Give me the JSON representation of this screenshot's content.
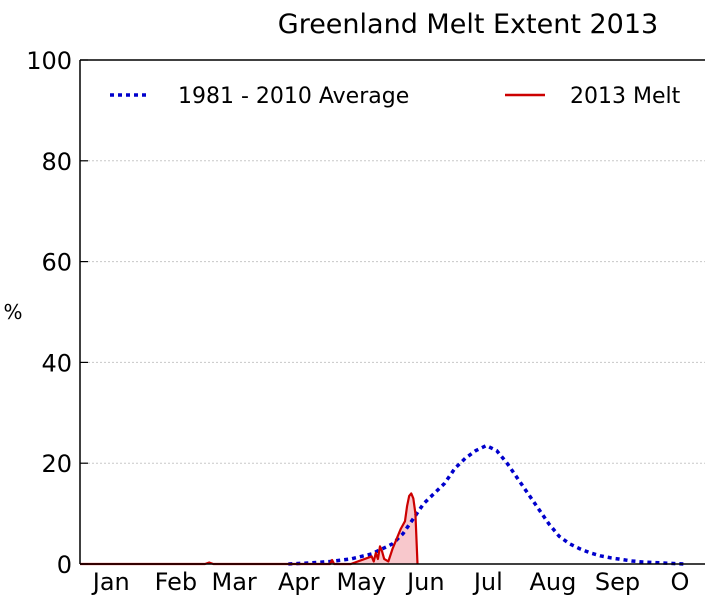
{
  "chart_data": {
    "type": "line",
    "title": "Greenland Melt Extent 2013",
    "xlabel": "",
    "ylabel": "%",
    "ylim": [
      0,
      100
    ],
    "yticks": [
      0,
      20,
      40,
      60,
      80,
      100
    ],
    "xlim": [
      0,
      300
    ],
    "month_ticks": [
      {
        "label": "Jan",
        "day": 15
      },
      {
        "label": "Feb",
        "day": 46
      },
      {
        "label": "Mar",
        "day": 74
      },
      {
        "label": "Apr",
        "day": 105
      },
      {
        "label": "May",
        "day": 135
      },
      {
        "label": "Jun",
        "day": 166
      },
      {
        "label": "Jul",
        "day": 196
      },
      {
        "label": "Aug",
        "day": 227
      },
      {
        "label": "Sep",
        "day": 258
      },
      {
        "label": "O",
        "day": 288
      }
    ],
    "grid": true,
    "legend_position": "top",
    "series": [
      {
        "name": "1981 - 2010 Average",
        "color": "#0000cc",
        "style": "dotted",
        "x": [
          100,
          110,
          120,
          130,
          140,
          150,
          155,
          160,
          165,
          170,
          175,
          180,
          185,
          190,
          195,
          200,
          205,
          210,
          215,
          220,
          225,
          230,
          235,
          240,
          245,
          250,
          255,
          260,
          265,
          270,
          275,
          280,
          285,
          290
        ],
        "y": [
          0,
          0.2,
          0.5,
          1,
          2,
          4,
          6,
          9,
          12,
          14,
          16,
          19,
          21,
          22.5,
          23.5,
          22.5,
          20,
          17,
          14,
          11,
          8,
          5.5,
          4,
          3,
          2.2,
          1.6,
          1.2,
          0.9,
          0.6,
          0.4,
          0.3,
          0.2,
          0.1,
          0
        ]
      },
      {
        "name": "2013 Melt",
        "color": "#cc0000",
        "style": "solid",
        "fill": "#f8c8cc",
        "x": [
          0,
          30,
          60,
          62,
          64,
          66,
          90,
          120,
          121,
          122,
          123,
          130,
          138,
          140,
          141,
          142,
          143,
          144,
          145,
          146,
          148,
          150,
          152,
          154,
          156,
          157,
          158,
          159,
          160,
          161,
          162
        ],
        "y": [
          0,
          0,
          0,
          0.3,
          0,
          0,
          0,
          0,
          0.8,
          0,
          0,
          0,
          1.2,
          1.5,
          0.5,
          2.2,
          1,
          3.5,
          2.5,
          1,
          0.5,
          3,
          5,
          7,
          8.5,
          11.5,
          13.5,
          14,
          13,
          10,
          0
        ]
      }
    ]
  }
}
